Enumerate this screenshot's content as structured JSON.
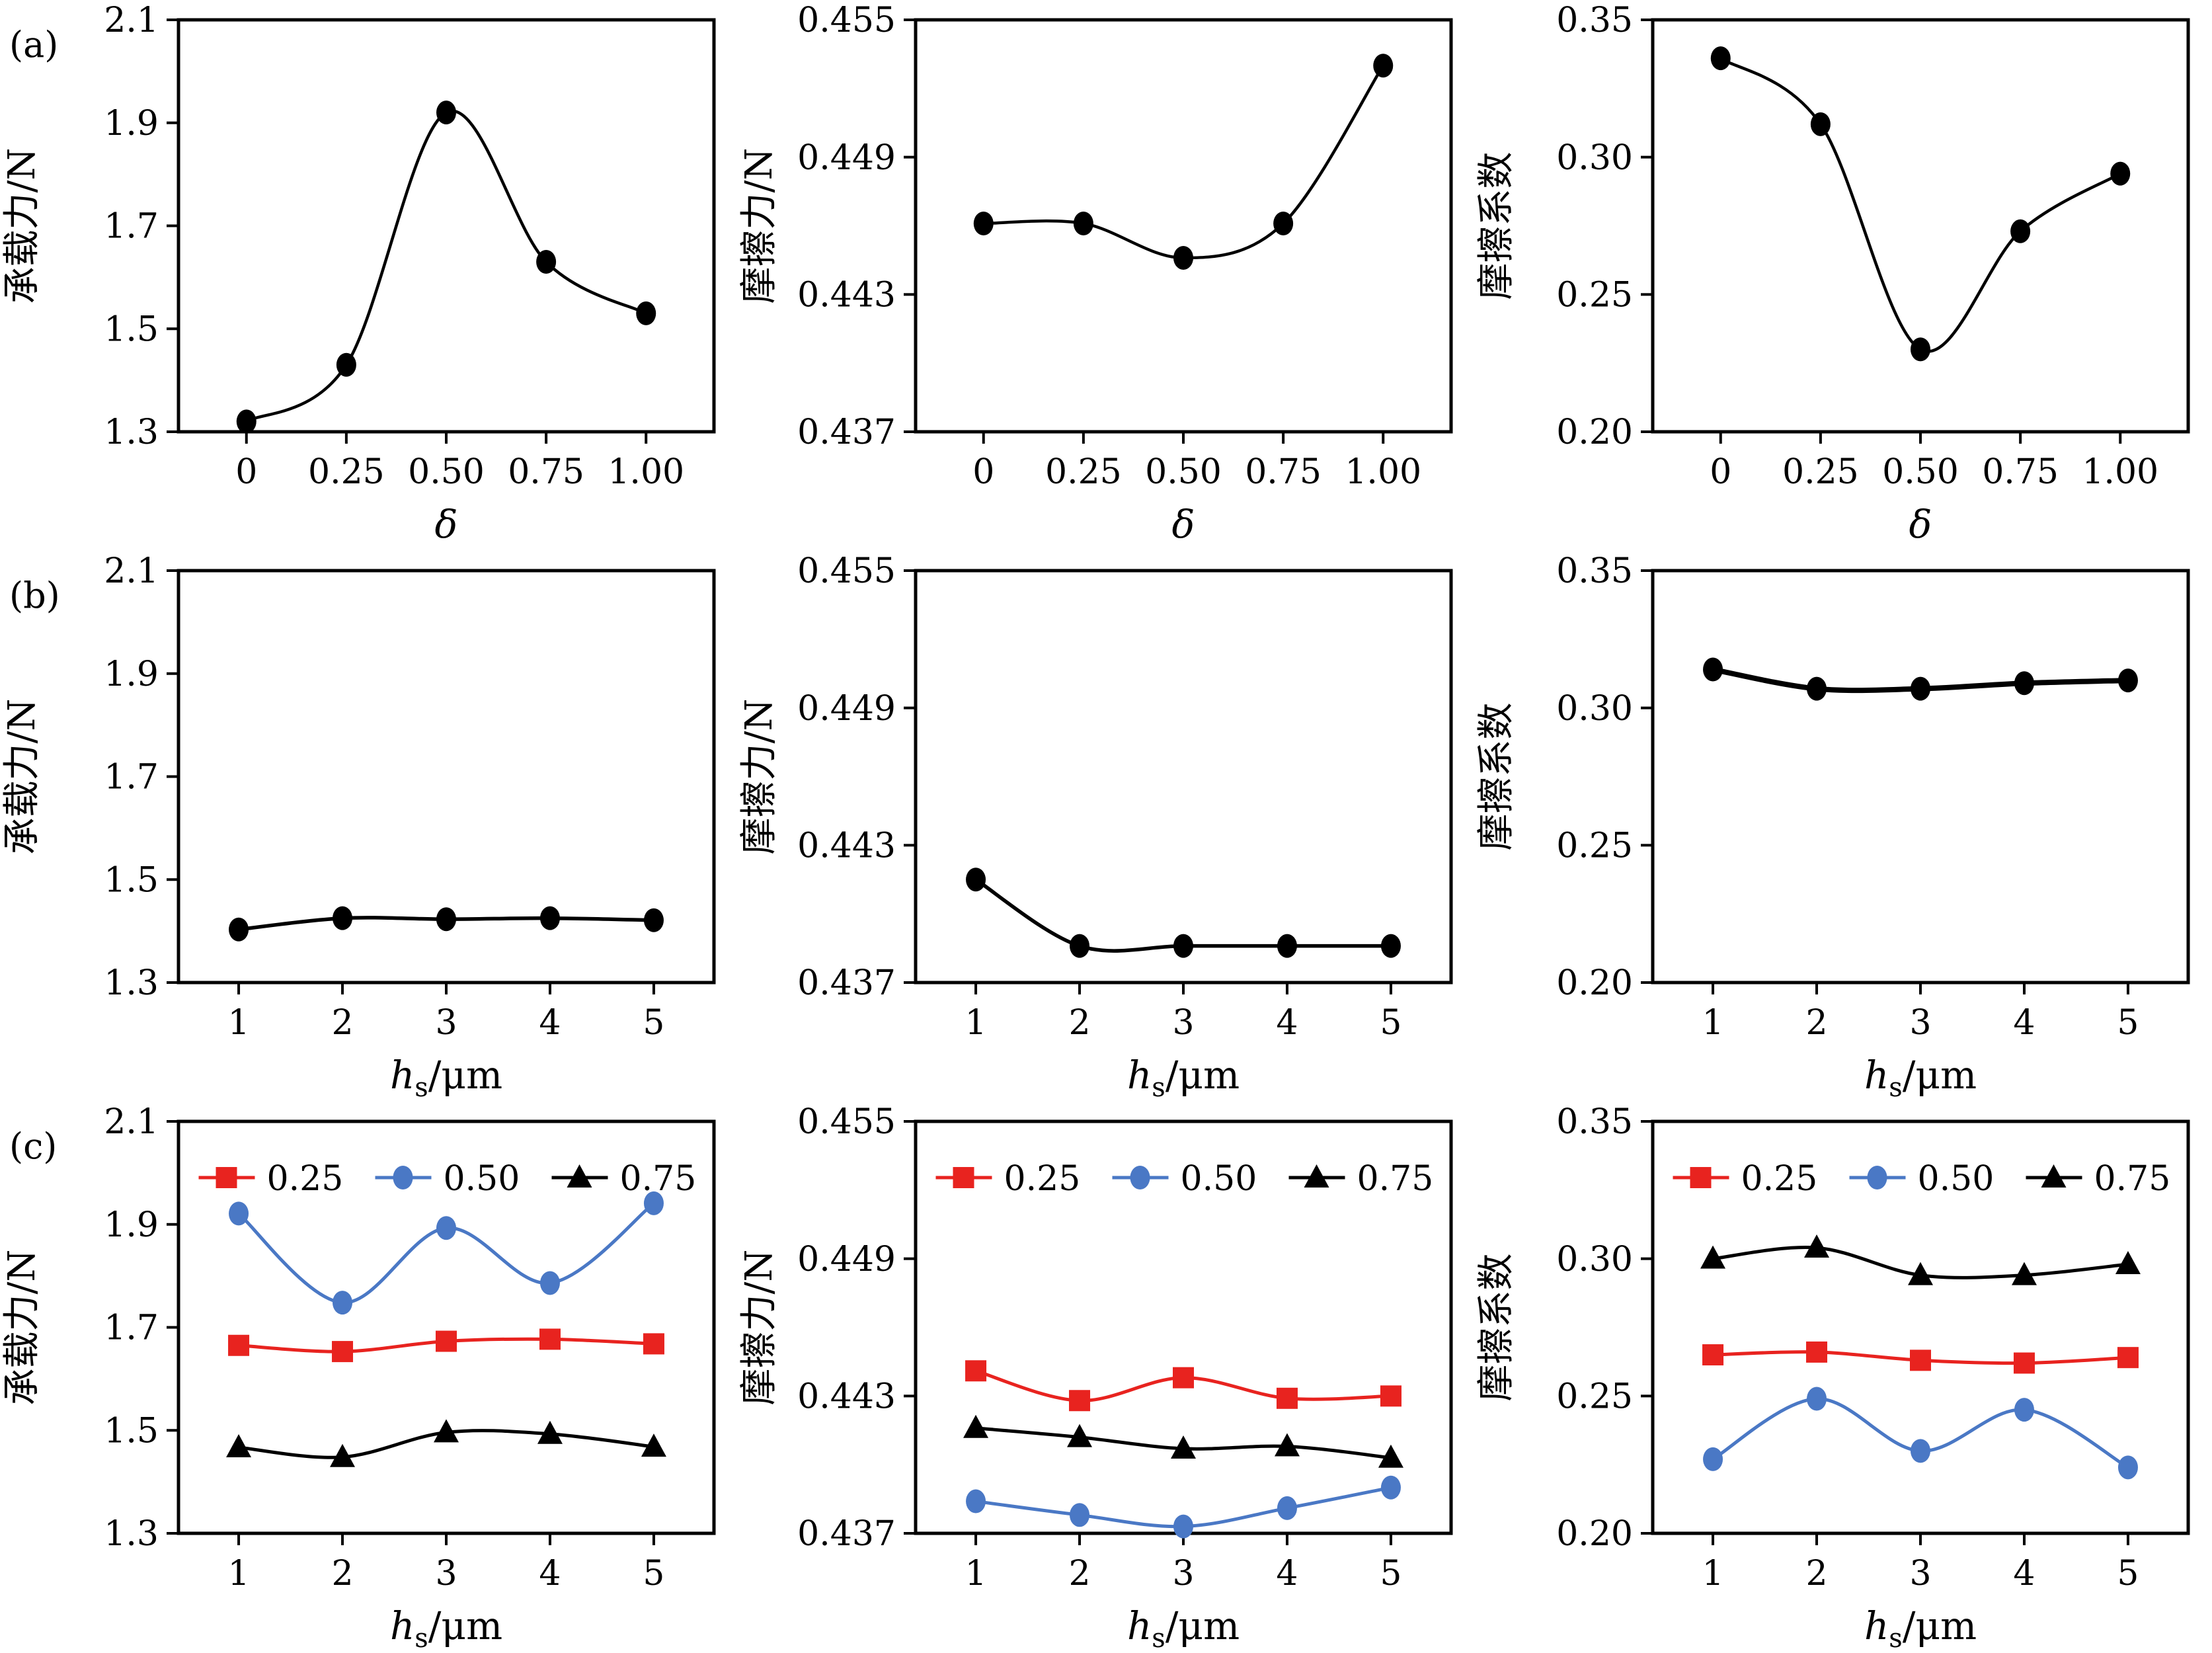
{
  "figure": {
    "panel_labels": [
      "(a)",
      "(b)",
      "(c)"
    ],
    "background": "#ffffff"
  },
  "colors": {
    "red": "#e8231f",
    "blue": "#4a78c5",
    "black": "#000000"
  },
  "legend": {
    "items": [
      {
        "label": "0.25",
        "color": "red",
        "marker": "square"
      },
      {
        "label": "0.50",
        "color": "blue",
        "marker": "circle"
      },
      {
        "label": "0.75",
        "color": "black",
        "marker": "triangle"
      }
    ]
  },
  "chart_data": [
    {
      "id": "a1",
      "type": "line",
      "panel": "(a)",
      "legend": false,
      "lw": 4.5,
      "ylabel": "承载力/N",
      "xlabel_parts": [
        {
          "t": "δ",
          "i": true
        }
      ],
      "x": [
        0,
        0.25,
        0.5,
        0.75,
        1
      ],
      "xlim": [
        -0.17,
        1.17
      ],
      "xticks": [
        0,
        0.25,
        0.5,
        0.75,
        1
      ],
      "xtick_labels": [
        "0",
        "0.25",
        "0.50",
        "0.75",
        "1.00"
      ],
      "ylim": [
        1.3,
        2.1
      ],
      "yticks": [
        1.3,
        1.5,
        1.7,
        1.9,
        2.1
      ],
      "ytick_labels": [
        "1.3",
        "1.5",
        "1.7",
        "1.9",
        "2.1"
      ],
      "series": [
        {
          "name": "bearing-force",
          "color": "black",
          "marker": "circle",
          "values": [
            1.32,
            1.43,
            1.92,
            1.63,
            1.53
          ]
        }
      ]
    },
    {
      "id": "a2",
      "type": "line",
      "panel": "",
      "legend": false,
      "lw": 4.5,
      "ylabel": "摩擦力/N",
      "xlabel_parts": [
        {
          "t": "δ",
          "i": true
        }
      ],
      "x": [
        0,
        0.25,
        0.5,
        0.75,
        1
      ],
      "xlim": [
        -0.17,
        1.17
      ],
      "xticks": [
        0,
        0.25,
        0.5,
        0.75,
        1
      ],
      "xtick_labels": [
        "0",
        "0.25",
        "0.50",
        "0.75",
        "1.00"
      ],
      "ylim": [
        0.437,
        0.455
      ],
      "yticks": [
        0.437,
        0.443,
        0.449,
        0.455
      ],
      "ytick_labels": [
        "0.437",
        "0.443",
        "0.449",
        "0.455"
      ],
      "series": [
        {
          "name": "friction-force",
          "color": "black",
          "marker": "circle",
          "values": [
            0.4461,
            0.4461,
            0.4446,
            0.4461,
            0.453
          ]
        }
      ]
    },
    {
      "id": "a3",
      "type": "line",
      "panel": "",
      "legend": false,
      "lw": 4.5,
      "ylabel": "摩擦系数",
      "xlabel_parts": [
        {
          "t": "δ",
          "i": true
        }
      ],
      "x": [
        0,
        0.25,
        0.5,
        0.75,
        1
      ],
      "xlim": [
        -0.17,
        1.17
      ],
      "xticks": [
        0,
        0.25,
        0.5,
        0.75,
        1
      ],
      "xtick_labels": [
        "0",
        "0.25",
        "0.50",
        "0.75",
        "1.00"
      ],
      "ylim": [
        0.2,
        0.35
      ],
      "yticks": [
        0.2,
        0.25,
        0.3,
        0.35
      ],
      "ytick_labels": [
        "0.20",
        "0.25",
        "0.30",
        "0.35"
      ],
      "series": [
        {
          "name": "friction-coefficient",
          "color": "black",
          "marker": "circle",
          "values": [
            0.336,
            0.312,
            0.23,
            0.273,
            0.294
          ]
        }
      ]
    },
    {
      "id": "b1",
      "type": "line",
      "panel": "(b)",
      "legend": false,
      "lw": 5.5,
      "ylabel": "承载力/N",
      "xlabel_parts": [
        {
          "t": "h",
          "i": true
        },
        {
          "t": "s",
          "sub": true
        },
        {
          "t": "/μm"
        }
      ],
      "x": [
        1,
        2,
        3,
        4,
        5
      ],
      "xlim": [
        0.42,
        5.58
      ],
      "xticks": [
        1,
        2,
        3,
        4,
        5
      ],
      "xtick_labels": [
        "1",
        "2",
        "3",
        "4",
        "5"
      ],
      "ylim": [
        1.3,
        2.1
      ],
      "yticks": [
        1.3,
        1.5,
        1.7,
        1.9,
        2.1
      ],
      "ytick_labels": [
        "1.3",
        "1.5",
        "1.7",
        "1.9",
        "2.1"
      ],
      "series": [
        {
          "name": "bearing-force",
          "color": "black",
          "marker": "circle",
          "values": [
            1.403,
            1.425,
            1.423,
            1.425,
            1.421
          ]
        }
      ]
    },
    {
      "id": "b2",
      "type": "line",
      "panel": "",
      "legend": false,
      "lw": 5.5,
      "ylabel": "摩擦力/N",
      "xlabel_parts": [
        {
          "t": "h",
          "i": true
        },
        {
          "t": "s",
          "sub": true
        },
        {
          "t": "/μm"
        }
      ],
      "x": [
        1,
        2,
        3,
        4,
        5
      ],
      "xlim": [
        0.42,
        5.58
      ],
      "xticks": [
        1,
        2,
        3,
        4,
        5
      ],
      "xtick_labels": [
        "1",
        "2",
        "3",
        "4",
        "5"
      ],
      "ylim": [
        0.437,
        0.455
      ],
      "yticks": [
        0.437,
        0.443,
        0.449,
        0.455
      ],
      "ytick_labels": [
        "0.437",
        "0.443",
        "0.449",
        "0.455"
      ],
      "series": [
        {
          "name": "friction-force",
          "color": "black",
          "marker": "circle",
          "values": [
            0.4415,
            0.4386,
            0.4386,
            0.4386,
            0.4386
          ]
        }
      ]
    },
    {
      "id": "b3",
      "type": "line",
      "panel": "",
      "legend": false,
      "lw": 8,
      "ylabel": "摩擦系数",
      "xlabel_parts": [
        {
          "t": "h",
          "i": true
        },
        {
          "t": "s",
          "sub": true
        },
        {
          "t": "/μm"
        }
      ],
      "x": [
        1,
        2,
        3,
        4,
        5
      ],
      "xlim": [
        0.42,
        5.58
      ],
      "xticks": [
        1,
        2,
        3,
        4,
        5
      ],
      "xtick_labels": [
        "1",
        "2",
        "3",
        "4",
        "5"
      ],
      "ylim": [
        0.2,
        0.35
      ],
      "yticks": [
        0.2,
        0.25,
        0.3,
        0.35
      ],
      "ytick_labels": [
        "0.20",
        "0.25",
        "0.30",
        "0.35"
      ],
      "series": [
        {
          "name": "friction-coefficient",
          "color": "black",
          "marker": "circle",
          "values": [
            0.314,
            0.307,
            0.307,
            0.309,
            0.31
          ]
        }
      ]
    },
    {
      "id": "c1",
      "type": "line",
      "panel": "(c)",
      "legend": true,
      "lw": 5,
      "ylabel": "承载力/N",
      "xlabel_parts": [
        {
          "t": "h",
          "i": true
        },
        {
          "t": "s",
          "sub": true
        },
        {
          "t": "/μm"
        }
      ],
      "x": [
        1,
        2,
        3,
        4,
        5
      ],
      "xlim": [
        0.42,
        5.58
      ],
      "xticks": [
        1,
        2,
        3,
        4,
        5
      ],
      "xtick_labels": [
        "1",
        "2",
        "3",
        "4",
        "5"
      ],
      "ylim": [
        1.3,
        2.1
      ],
      "yticks": [
        1.3,
        1.5,
        1.7,
        1.9,
        2.1
      ],
      "ytick_labels": [
        "1.3",
        "1.5",
        "1.7",
        "1.9",
        "2.1"
      ],
      "series": [
        {
          "name": "0.25",
          "color": "red",
          "marker": "square",
          "values": [
            1.665,
            1.653,
            1.673,
            1.677,
            1.668
          ]
        },
        {
          "name": "0.50",
          "color": "blue",
          "marker": "circle",
          "values": [
            1.921,
            1.748,
            1.893,
            1.786,
            1.941
          ]
        },
        {
          "name": "0.75",
          "color": "black",
          "marker": "triangle",
          "values": [
            1.467,
            1.448,
            1.496,
            1.493,
            1.468
          ]
        }
      ]
    },
    {
      "id": "c2",
      "type": "line",
      "panel": "",
      "legend": true,
      "lw": 5,
      "ylabel": "摩擦力/N",
      "xlabel_parts": [
        {
          "t": "h",
          "i": true
        },
        {
          "t": "s",
          "sub": true
        },
        {
          "t": "/μm"
        }
      ],
      "x": [
        1,
        2,
        3,
        4,
        5
      ],
      "xlim": [
        0.42,
        5.58
      ],
      "xticks": [
        1,
        2,
        3,
        4,
        5
      ],
      "xtick_labels": [
        "1",
        "2",
        "3",
        "4",
        "5"
      ],
      "ylim": [
        0.437,
        0.455
      ],
      "yticks": [
        0.437,
        0.443,
        0.449,
        0.455
      ],
      "ytick_labels": [
        "0.437",
        "0.443",
        "0.449",
        "0.455"
      ],
      "series": [
        {
          "name": "0.25",
          "color": "red",
          "marker": "square",
          "values": [
            0.4441,
            0.4428,
            0.4438,
            0.4429,
            0.443
          ]
        },
        {
          "name": "0.50",
          "color": "blue",
          "marker": "circle",
          "values": [
            0.4384,
            0.4378,
            0.4373,
            0.4381,
            0.439
          ]
        },
        {
          "name": "0.75",
          "color": "black",
          "marker": "triangle",
          "values": [
            0.4416,
            0.4412,
            0.4407,
            0.4408,
            0.4403
          ]
        }
      ]
    },
    {
      "id": "c3",
      "type": "line",
      "panel": "",
      "legend": true,
      "lw": 5,
      "ylabel": "摩擦系数",
      "xlabel_parts": [
        {
          "t": "h",
          "i": true
        },
        {
          "t": "s",
          "sub": true
        },
        {
          "t": "/μm"
        }
      ],
      "x": [
        1,
        2,
        3,
        4,
        5
      ],
      "xlim": [
        0.42,
        5.58
      ],
      "xticks": [
        1,
        2,
        3,
        4,
        5
      ],
      "xtick_labels": [
        "1",
        "2",
        "3",
        "4",
        "5"
      ],
      "ylim": [
        0.2,
        0.35
      ],
      "yticks": [
        0.2,
        0.25,
        0.3,
        0.35
      ],
      "ytick_labels": [
        "0.20",
        "0.25",
        "0.30",
        "0.35"
      ],
      "series": [
        {
          "name": "0.25",
          "color": "red",
          "marker": "square",
          "values": [
            0.265,
            0.266,
            0.263,
            0.262,
            0.264
          ]
        },
        {
          "name": "0.50",
          "color": "blue",
          "marker": "circle",
          "values": [
            0.227,
            0.249,
            0.23,
            0.245,
            0.224
          ]
        },
        {
          "name": "0.75",
          "color": "black",
          "marker": "triangle",
          "values": [
            0.3,
            0.304,
            0.294,
            0.294,
            0.298
          ]
        }
      ]
    }
  ]
}
